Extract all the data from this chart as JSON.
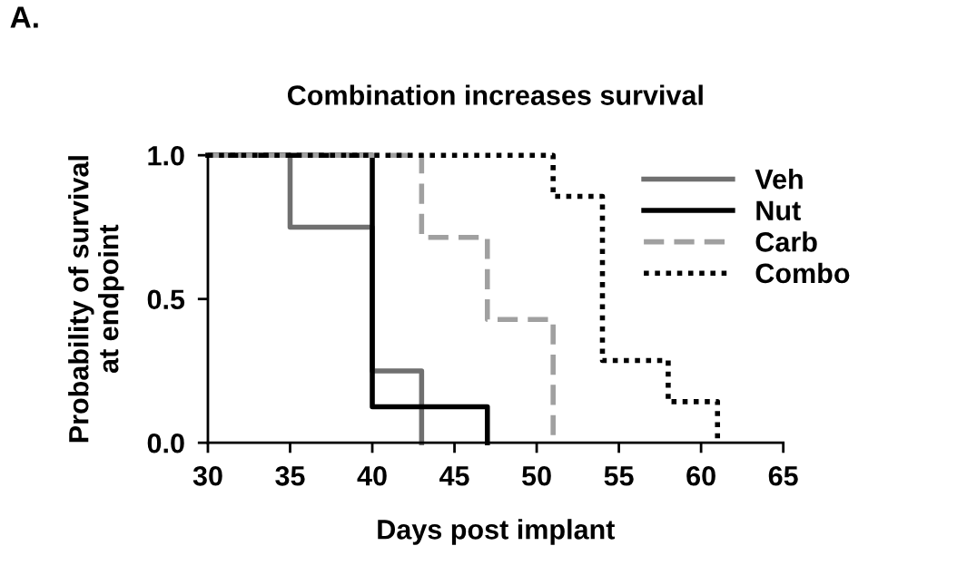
{
  "chart_data": {
    "type": "step",
    "title": "Combination increases survival",
    "xlabel": "Days post implant",
    "ylabel": "Probability of survival\nat endpoint",
    "annotations": [
      "A."
    ],
    "series": [
      {
        "name": "Veh",
        "color": "#707070",
        "line_style": "solid",
        "x": [
          30,
          35,
          40,
          43,
          43
        ],
        "values": [
          1.0,
          0.75,
          0.25,
          0.0,
          0.0
        ]
      },
      {
        "name": "Nut",
        "color": "#000000",
        "line_style": "solid",
        "x": [
          30,
          40,
          47,
          47
        ],
        "values": [
          1.0,
          0.125,
          0.0,
          0.0
        ]
      },
      {
        "name": "Carb",
        "color": "#a0a0a0",
        "line_style": "dashed",
        "x": [
          30,
          43,
          47,
          51,
          51
        ],
        "values": [
          1.0,
          0.714,
          0.429,
          0.0,
          0.0
        ]
      },
      {
        "name": "Combo",
        "color": "#000000",
        "line_style": "dotted",
        "x": [
          30,
          51,
          54,
          58,
          61,
          61
        ],
        "values": [
          1.0,
          0.857,
          0.286,
          0.143,
          0.0,
          0.0
        ]
      }
    ],
    "xlim": [
      30,
      65
    ],
    "xticks": [
      30,
      35,
      40,
      45,
      50,
      55,
      60,
      65
    ],
    "ylim": [
      0,
      1.0
    ],
    "yticks": [
      {
        "value": 0,
        "label": "0.0"
      },
      {
        "value": 0.5,
        "label": "0.5"
      },
      {
        "value": 1.0,
        "label": "1.0"
      }
    ],
    "grid": false,
    "legend": "top right"
  }
}
